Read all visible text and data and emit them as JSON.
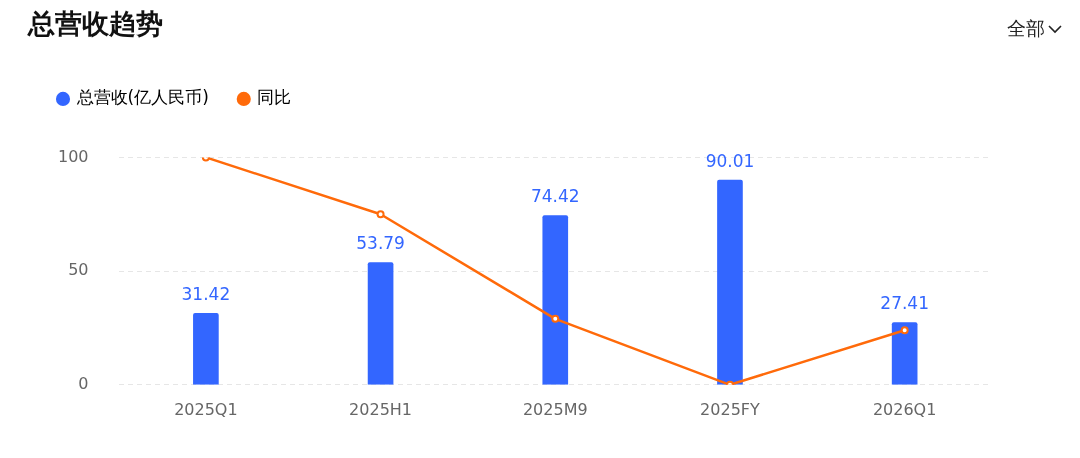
{
  "chart_data": {
    "type": "bar",
    "title": "总营收趋势",
    "annotations": [
      "全部"
    ],
    "categories": [
      "2025Q1",
      "2025H1",
      "2025M9",
      "2025FY",
      "2026Q1"
    ],
    "series": [
      {
        "name": "总营收(亿人民币)",
        "color": "#3366ff",
        "values": [
          31.42,
          53.79,
          74.42,
          90.01,
          27.41
        ],
        "value_labels": [
          "31.42",
          "53.79",
          "74.42",
          "90.01",
          "27.41"
        ]
      },
      {
        "name": "同比",
        "type": "line",
        "color": "#ff6a0a",
        "values": [
          100,
          75,
          29,
          0,
          24
        ],
        "marker": "circle"
      }
    ],
    "ylim": [
      0,
      100
    ],
    "yticks": [
      0,
      50,
      100
    ],
    "grid": "y",
    "legend": "top left"
  }
}
